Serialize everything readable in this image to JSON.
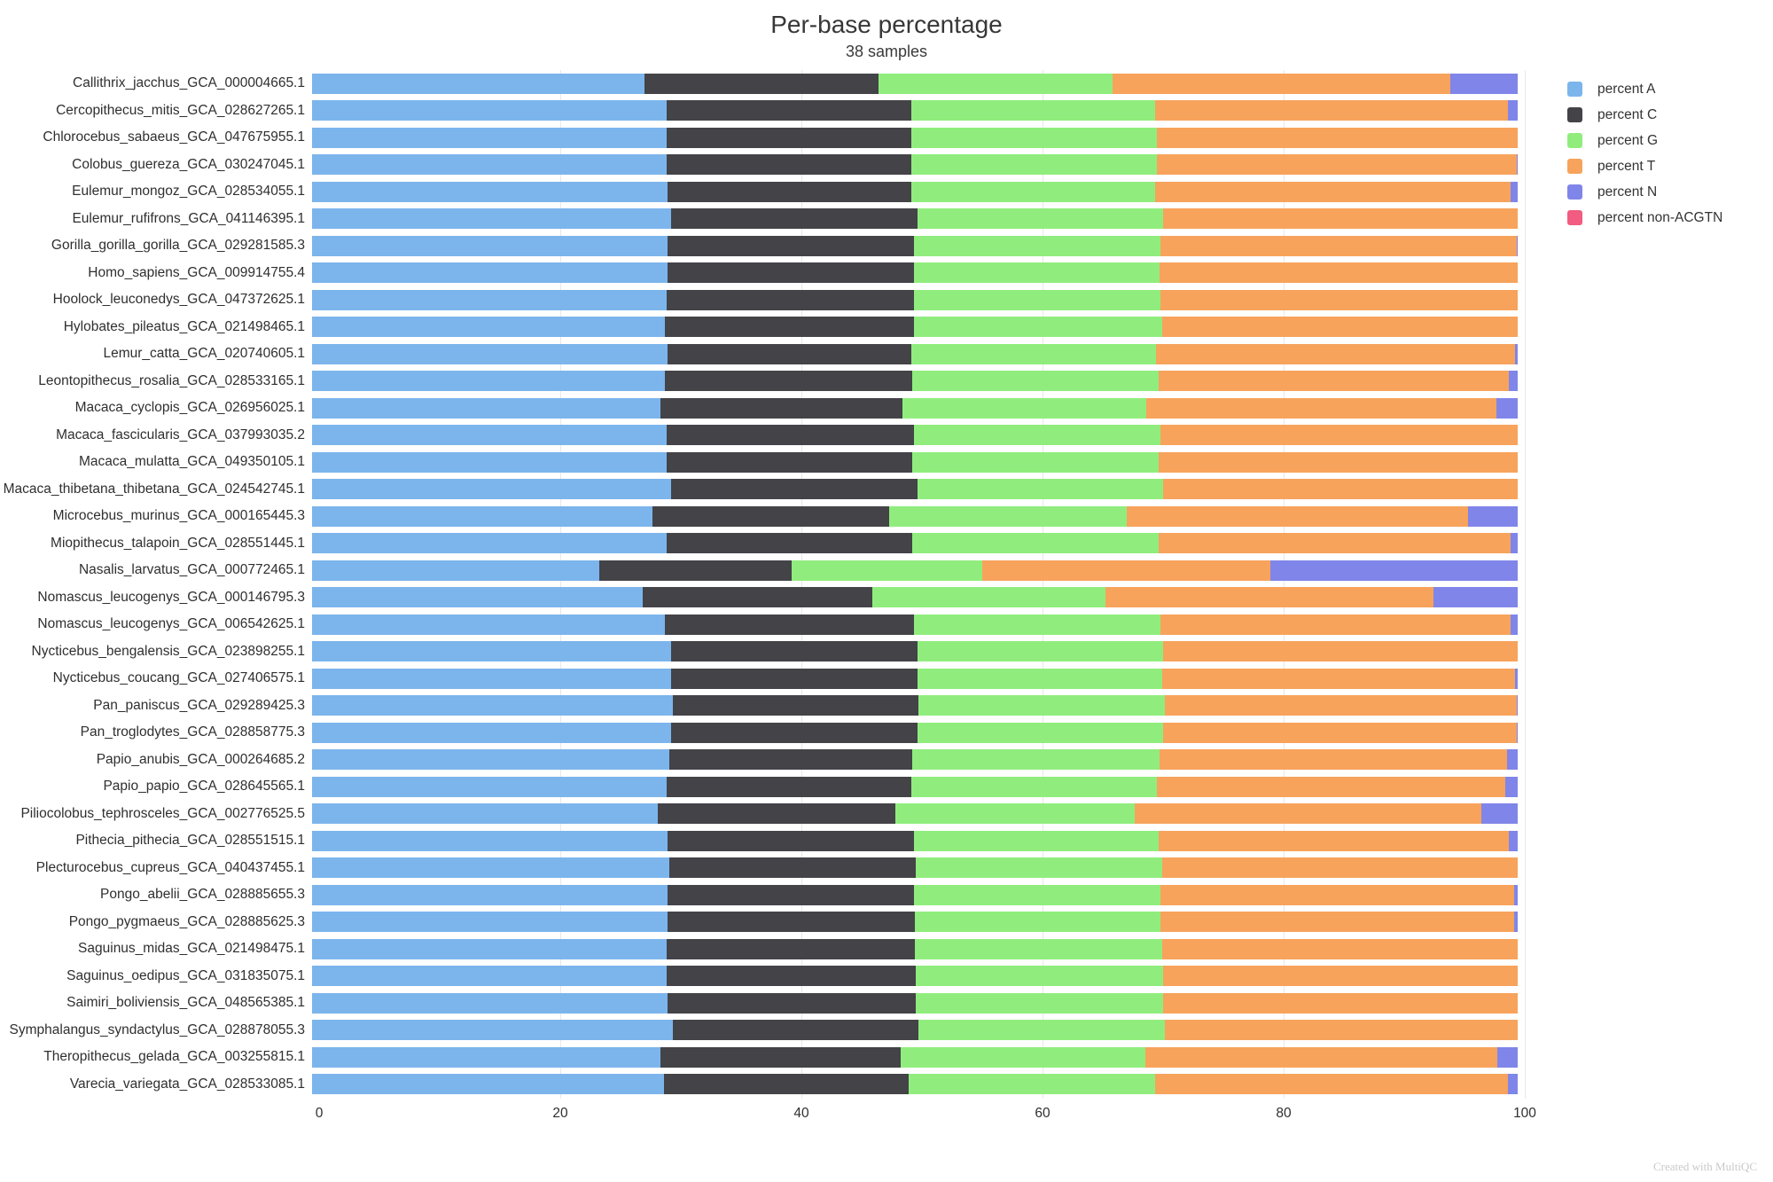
{
  "header": {
    "title": "Per-base percentage",
    "subtitle": "38 samples"
  },
  "footer": {
    "credit": "Created with MultiQC"
  },
  "legend": {
    "position": "right",
    "items": [
      {
        "label": "percent A",
        "color": "#7cb5ec"
      },
      {
        "label": "percent C",
        "color": "#434348"
      },
      {
        "label": "percent G",
        "color": "#90ed7d"
      },
      {
        "label": "percent T",
        "color": "#f7a35c"
      },
      {
        "label": "percent N",
        "color": "#8085e9"
      },
      {
        "label": "percent non-ACGTN",
        "color": "#f15c80"
      }
    ]
  },
  "chart_data": {
    "type": "bar",
    "orientation": "horizontal",
    "stacked": true,
    "title": "Per-base percentage",
    "subtitle": "38 samples",
    "xlabel": "",
    "ylabel": "",
    "xlim": [
      0,
      100
    ],
    "x_ticks": [
      0,
      20,
      40,
      60,
      80,
      100
    ],
    "grid": true,
    "legend_position": "right",
    "categories": [
      "Callithrix_jacchus_GCA_000004665.1",
      "Cercopithecus_mitis_GCA_028627265.1",
      "Chlorocebus_sabaeus_GCA_047675955.1",
      "Colobus_guereza_GCA_030247045.1",
      "Eulemur_mongoz_GCA_028534055.1",
      "Eulemur_rufifrons_GCA_041146395.1",
      "Gorilla_gorilla_gorilla_GCA_029281585.3",
      "Homo_sapiens_GCA_009914755.4",
      "Hoolock_leuconedys_GCA_047372625.1",
      "Hylobates_pileatus_GCA_021498465.1",
      "Lemur_catta_GCA_020740605.1",
      "Leontopithecus_rosalia_GCA_028533165.1",
      "Macaca_cyclopis_GCA_026956025.1",
      "Macaca_fascicularis_GCA_037993035.2",
      "Macaca_mulatta_GCA_049350105.1",
      "Macaca_thibetana_thibetana_GCA_024542745.1",
      "Microcebus_murinus_GCA_000165445.3",
      "Miopithecus_talapoin_GCA_028551445.1",
      "Nasalis_larvatus_GCA_000772465.1",
      "Nomascus_leucogenys_GCA_000146795.3",
      "Nomascus_leucogenys_GCA_006542625.1",
      "Nycticebus_bengalensis_GCA_023898255.1",
      "Nycticebus_coucang_GCA_027406575.1",
      "Pan_paniscus_GCA_029289425.3",
      "Pan_troglodytes_GCA_028858775.3",
      "Papio_anubis_GCA_000264685.2",
      "Papio_papio_GCA_028645565.1",
      "Piliocolobus_tephrosceles_GCA_002776525.5",
      "Pithecia_pithecia_GCA_028551515.1",
      "Plecturocebus_cupreus_GCA_040437455.1",
      "Pongo_abelii_GCA_028885655.3",
      "Pongo_pygmaeus_GCA_028885625.3",
      "Saguinus_midas_GCA_021498475.1",
      "Saguinus_oedipus_GCA_031835075.1",
      "Saimiri_boliviensis_GCA_048565385.1",
      "Symphalangus_syndactylus_GCA_028878055.3",
      "Theropithecus_gelada_GCA_003255815.1",
      "Varecia_variegata_GCA_028533085.1"
    ],
    "series": [
      {
        "name": "percent A",
        "color": "#7cb5ec",
        "values": [
          27.6,
          29.4,
          29.4,
          29.4,
          29.5,
          29.8,
          29.5,
          29.5,
          29.4,
          29.3,
          29.5,
          29.3,
          28.9,
          29.4,
          29.4,
          29.8,
          28.2,
          29.4,
          23.8,
          27.4,
          29.3,
          29.8,
          29.8,
          29.9,
          29.8,
          29.6,
          29.4,
          28.7,
          29.5,
          29.6,
          29.5,
          29.5,
          29.4,
          29.4,
          29.5,
          29.9,
          28.9,
          29.2
        ]
      },
      {
        "name": "percent C",
        "color": "#434348",
        "values": [
          19.4,
          20.3,
          20.3,
          20.3,
          20.2,
          20.4,
          20.4,
          20.4,
          20.5,
          20.6,
          20.2,
          20.5,
          20.1,
          20.5,
          20.4,
          20.4,
          19.7,
          20.4,
          16.0,
          19.1,
          20.6,
          20.4,
          20.4,
          20.4,
          20.4,
          20.2,
          20.3,
          19.7,
          20.4,
          20.5,
          20.4,
          20.5,
          20.6,
          20.7,
          20.6,
          20.4,
          19.9,
          20.3
        ]
      },
      {
        "name": "percent G",
        "color": "#90ed7d",
        "values": [
          19.4,
          20.2,
          20.4,
          20.4,
          20.2,
          20.4,
          20.5,
          20.4,
          20.5,
          20.6,
          20.3,
          20.4,
          20.2,
          20.5,
          20.4,
          20.4,
          19.7,
          20.4,
          15.8,
          19.3,
          20.5,
          20.4,
          20.3,
          20.4,
          20.4,
          20.5,
          20.4,
          19.8,
          20.3,
          20.4,
          20.5,
          20.4,
          20.5,
          20.5,
          20.5,
          20.4,
          20.3,
          20.4
        ]
      },
      {
        "name": "percent T",
        "color": "#f7a35c",
        "values": [
          28.0,
          29.3,
          29.9,
          29.8,
          29.5,
          29.4,
          29.5,
          29.7,
          29.6,
          29.5,
          29.8,
          29.1,
          29.0,
          29.6,
          29.8,
          29.4,
          28.3,
          29.2,
          23.9,
          27.2,
          29.0,
          29.4,
          29.3,
          29.2,
          29.3,
          28.8,
          28.9,
          28.8,
          29.1,
          29.5,
          29.3,
          29.3,
          29.5,
          29.4,
          29.4,
          29.3,
          29.2,
          29.3
        ]
      },
      {
        "name": "percent N",
        "color": "#8085e9",
        "values": [
          5.6,
          0.8,
          0.0,
          0.1,
          0.6,
          0.0,
          0.1,
          0.0,
          0.0,
          0.0,
          0.2,
          0.7,
          1.8,
          0.0,
          0.0,
          0.0,
          4.1,
          0.6,
          20.5,
          7.0,
          0.6,
          0.0,
          0.2,
          0.1,
          0.1,
          0.9,
          1.0,
          3.0,
          0.7,
          0.0,
          0.3,
          0.3,
          0.0,
          0.0,
          0.0,
          0.0,
          1.7,
          0.8
        ]
      },
      {
        "name": "percent non-ACGTN",
        "color": "#f15c80",
        "values": [
          0,
          0,
          0,
          0,
          0,
          0,
          0,
          0,
          0,
          0,
          0,
          0,
          0,
          0,
          0,
          0,
          0,
          0,
          0,
          0,
          0,
          0,
          0,
          0,
          0,
          0,
          0,
          0,
          0,
          0,
          0,
          0,
          0,
          0,
          0,
          0,
          0,
          0
        ]
      }
    ]
  }
}
